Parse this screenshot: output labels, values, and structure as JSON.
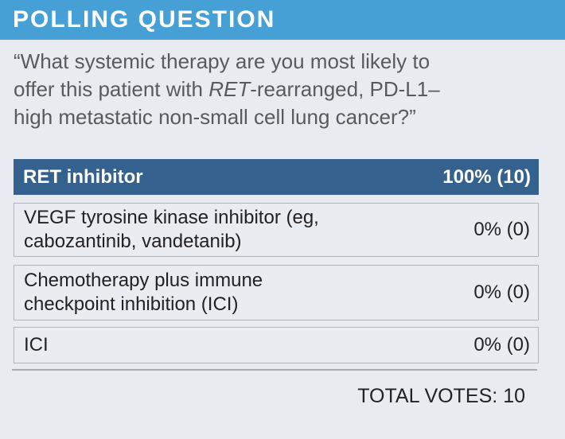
{
  "header": {
    "title": "POLLING QUESTION"
  },
  "question": {
    "prefix": "“What systemic therapy are you most likely to offer this patient with ",
    "gene": "RET",
    "suffix": "-rearranged, PD-L1–high metastatic non-small cell lung cancer?”"
  },
  "poll": {
    "options": [
      {
        "label": "RET inhibitor",
        "result": "100% (10)"
      },
      {
        "label": "VEGF tyrosine kinase inhibitor (eg, cabozantinib, vandetanib)",
        "result": "0% (0)"
      },
      {
        "label": "Chemotherapy plus immune checkpoint inhibition (ICI)",
        "result": "0% (0)"
      },
      {
        "label": "ICI",
        "result": "0% (0)"
      }
    ],
    "total_votes_label": "TOTAL VOTES:",
    "total_votes_value": "10"
  },
  "colors": {
    "header_bg": "#47A0D5",
    "header_text": "#FFFFFF",
    "page_bg": "#E8ECF1",
    "row_bg": "#E9EDF2",
    "row_border": "#B4B6B8",
    "highlight_bg": "#35618E",
    "highlight_text": "#FFFFFF",
    "question_text": "#595A5C",
    "option_text": "#232122",
    "divider": "#A9ABAD"
  }
}
